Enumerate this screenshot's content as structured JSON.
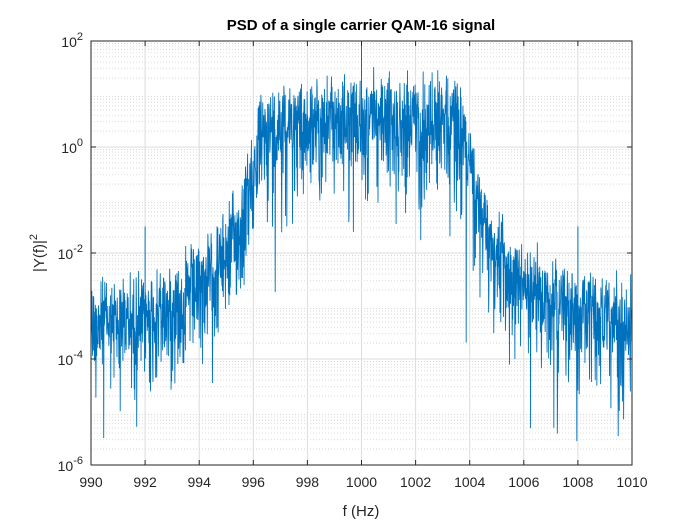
{
  "chart_data": {
    "type": "line",
    "title": "PSD of a single carrier QAM-16 signal",
    "xlabel": "f (Hz)",
    "ylabel": {
      "base": "|Y(f)|",
      "sup": "2"
    },
    "xlim": [
      990,
      1010
    ],
    "ylim_log10": [
      -6,
      2
    ],
    "yscale": "log",
    "grid": true,
    "minor_grid": true,
    "line_color": "#0072bd",
    "xticks": [
      990,
      992,
      994,
      996,
      998,
      1000,
      1002,
      1004,
      1006,
      1008,
      1010
    ],
    "xtick_labels": [
      "990",
      "992",
      "994",
      "996",
      "998",
      "1000",
      "1002",
      "1004",
      "1006",
      "1008",
      "1010"
    ],
    "yticks_exp": [
      -6,
      -4,
      -2,
      0,
      2
    ],
    "ytick_labels": [
      {
        "base": "10",
        "exp": "-6"
      },
      {
        "base": "10",
        "exp": "-4"
      },
      {
        "base": "10",
        "exp": "-2"
      },
      {
        "base": "10",
        "exp": "0"
      },
      {
        "base": "10",
        "exp": "2"
      }
    ],
    "series": [
      {
        "name": "PSD",
        "envelope_f": [
          990,
          991,
          992,
          993,
          994,
          994.8,
          995.5,
          995.9,
          996.3,
          997,
          998,
          999,
          1000,
          1001,
          1002,
          1003,
          1003.6,
          1004,
          1004.3,
          1004.8,
          1005.3,
          1006,
          1007,
          1008,
          1009,
          1010
        ],
        "envelope_log10": [
          -3.4,
          -3.4,
          -3.3,
          -3.1,
          -2.7,
          -2.3,
          -1.6,
          -0.8,
          0.1,
          0.4,
          0.3,
          0.4,
          0.3,
          0.4,
          0.4,
          0.5,
          0.3,
          -0.3,
          -1.3,
          -1.9,
          -2.5,
          -2.8,
          -3.0,
          -3.2,
          -3.4,
          -3.5
        ],
        "spikes": [
          {
            "f": 992.0,
            "log10": -1.5
          },
          {
            "f": 1000.0,
            "log10": 2.0
          },
          {
            "f": 1008.0,
            "log10": -1.5
          }
        ]
      }
    ]
  }
}
